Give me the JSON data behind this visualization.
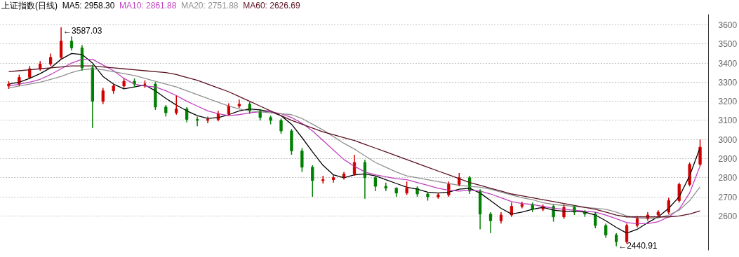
{
  "chart_data": {
    "type": "candlestick",
    "title": "上证指数(日线)",
    "legend": "top",
    "grid": "y",
    "ylim": [
      2420,
      3655
    ],
    "yticks": [
      2600,
      2700,
      2800,
      2900,
      3000,
      3100,
      3200,
      3300,
      3400,
      3500,
      3600
    ],
    "tick_labels": "y",
    "categories": [
      null,
      null,
      null,
      null,
      null,
      null,
      null,
      null,
      null,
      null,
      null,
      null,
      null,
      null,
      null,
      null,
      null,
      null,
      null,
      null,
      null,
      null,
      null,
      null,
      null,
      null,
      null,
      null,
      null,
      null,
      null,
      null,
      null,
      null,
      null,
      null,
      null,
      null,
      null,
      null,
      null,
      null,
      null,
      null,
      null,
      null,
      null,
      null,
      null,
      null,
      null,
      null,
      null,
      null,
      null,
      null,
      null,
      null,
      null,
      null,
      null,
      null,
      null,
      null,
      null,
      null,
      null
    ],
    "ohlc": [
      [
        3280,
        3305,
        3265,
        3290
      ],
      [
        3290,
        3340,
        3280,
        3325
      ],
      [
        3325,
        3385,
        3315,
        3370
      ],
      [
        3370,
        3410,
        3360,
        3395
      ],
      [
        3395,
        3450,
        3385,
        3430
      ],
      [
        3430,
        3587.03,
        3420,
        3515
      ],
      [
        3515,
        3540,
        3465,
        3480
      ],
      [
        3480,
        3495,
        3360,
        3375
      ],
      [
        3375,
        3390,
        3060,
        3200
      ],
      [
        3200,
        3270,
        3185,
        3255
      ],
      [
        3255,
        3295,
        3240,
        3280
      ],
      [
        3280,
        3320,
        3270,
        3305
      ],
      [
        3305,
        3320,
        3275,
        3290
      ],
      [
        3290,
        3310,
        3270,
        3290
      ],
      [
        3290,
        3300,
        3155,
        3170
      ],
      [
        3170,
        3180,
        3120,
        3140
      ],
      [
        3140,
        3230,
        3130,
        3160
      ],
      [
        3160,
        3170,
        3090,
        3105
      ],
      [
        3105,
        3120,
        3070,
        3100
      ],
      [
        3100,
        3120,
        3085,
        3105
      ],
      [
        3105,
        3150,
        3095,
        3135
      ],
      [
        3135,
        3190,
        3125,
        3175
      ],
      [
        3175,
        3210,
        3165,
        3185
      ],
      [
        3185,
        3195,
        3135,
        3150
      ],
      [
        3150,
        3160,
        3100,
        3115
      ],
      [
        3115,
        3125,
        3080,
        3100
      ],
      [
        3100,
        3110,
        3030,
        3045
      ],
      [
        3045,
        3055,
        2920,
        2940
      ],
      [
        2940,
        2955,
        2830,
        2855
      ],
      [
        2855,
        2865,
        2700,
        2785
      ],
      [
        2785,
        2810,
        2770,
        2790
      ],
      [
        2790,
        2815,
        2775,
        2800
      ],
      [
        2800,
        2830,
        2790,
        2820
      ],
      [
        2820,
        2920,
        2810,
        2880
      ],
      [
        2880,
        2895,
        2690,
        2800
      ],
      [
        2800,
        2810,
        2730,
        2755
      ],
      [
        2755,
        2775,
        2730,
        2745
      ],
      [
        2745,
        2750,
        2700,
        2720
      ],
      [
        2720,
        2780,
        2710,
        2745
      ],
      [
        2745,
        2755,
        2700,
        2715
      ],
      [
        2715,
        2725,
        2680,
        2700
      ],
      [
        2700,
        2720,
        2690,
        2710
      ],
      [
        2710,
        2780,
        2700,
        2765
      ],
      [
        2765,
        2825,
        2755,
        2800
      ],
      [
        2800,
        2810,
        2715,
        2730
      ],
      [
        2730,
        2740,
        2530,
        2610
      ],
      [
        2610,
        2620,
        2510,
        2575
      ],
      [
        2575,
        2620,
        2560,
        2605
      ],
      [
        2605,
        2670,
        2595,
        2650
      ],
      [
        2650,
        2675,
        2640,
        2660
      ],
      [
        2660,
        2670,
        2620,
        2635
      ],
      [
        2635,
        2660,
        2625,
        2650
      ],
      [
        2650,
        2660,
        2570,
        2595
      ],
      [
        2595,
        2660,
        2585,
        2645
      ],
      [
        2645,
        2655,
        2605,
        2620
      ],
      [
        2620,
        2630,
        2595,
        2610
      ],
      [
        2610,
        2620,
        2535,
        2550
      ],
      [
        2550,
        2560,
        2485,
        2500
      ],
      [
        2500,
        2510,
        2440.91,
        2465
      ],
      [
        2465,
        2560,
        2455,
        2550
      ],
      [
        2550,
        2600,
        2540,
        2585
      ],
      [
        2585,
        2620,
        2575,
        2605
      ],
      [
        2605,
        2630,
        2595,
        2620
      ],
      [
        2620,
        2695,
        2610,
        2680
      ],
      [
        2680,
        2775,
        2670,
        2765
      ],
      [
        2765,
        2880,
        2755,
        2870
      ],
      [
        2870,
        3000,
        2860,
        2960
      ]
    ],
    "series": [
      {
        "name": "MA5: 2958.30",
        "type": "line",
        "color": "#000000",
        "values": [
          3290,
          3300,
          3320,
          3345,
          3375,
          3420,
          3450,
          3445,
          3400,
          3330,
          3290,
          3265,
          3275,
          3285,
          3255,
          3215,
          3180,
          3150,
          3125,
          3110,
          3115,
          3130,
          3150,
          3160,
          3155,
          3145,
          3125,
          3080,
          3010,
          2935,
          2865,
          2815,
          2800,
          2815,
          2820,
          2810,
          2790,
          2770,
          2750,
          2740,
          2725,
          2720,
          2725,
          2740,
          2745,
          2720,
          2680,
          2640,
          2610,
          2620,
          2635,
          2645,
          2630,
          2625,
          2625,
          2620,
          2605,
          2575,
          2540,
          2510,
          2530,
          2565,
          2595,
          2640,
          2700,
          2810,
          2958
        ]
      },
      {
        "name": "MA10: 2861.88",
        "type": "line",
        "color": "#c040c0",
        "values": [
          3280,
          3290,
          3300,
          3315,
          3340,
          3370,
          3400,
          3420,
          3420,
          3390,
          3360,
          3320,
          3290,
          3280,
          3275,
          3255,
          3230,
          3200,
          3175,
          3150,
          3135,
          3125,
          3130,
          3140,
          3145,
          3145,
          3135,
          3115,
          3085,
          3045,
          2995,
          2945,
          2895,
          2860,
          2830,
          2815,
          2805,
          2795,
          2790,
          2775,
          2760,
          2745,
          2735,
          2730,
          2735,
          2730,
          2715,
          2695,
          2675,
          2665,
          2660,
          2650,
          2640,
          2635,
          2630,
          2625,
          2620,
          2605,
          2585,
          2565,
          2560,
          2560,
          2570,
          2595,
          2635,
          2720,
          2862
        ]
      },
      {
        "name": "MA20: 2751.88",
        "type": "line",
        "color": "#909090",
        "values": [
          3270,
          3280,
          3290,
          3300,
          3315,
          3330,
          3350,
          3365,
          3370,
          3365,
          3355,
          3345,
          3335,
          3320,
          3305,
          3290,
          3275,
          3255,
          3235,
          3215,
          3195,
          3175,
          3160,
          3150,
          3145,
          3140,
          3135,
          3130,
          3110,
          3080,
          3050,
          3015,
          2980,
          2950,
          2915,
          2880,
          2855,
          2830,
          2810,
          2800,
          2790,
          2780,
          2770,
          2760,
          2755,
          2750,
          2740,
          2725,
          2710,
          2695,
          2685,
          2670,
          2660,
          2655,
          2650,
          2645,
          2640,
          2635,
          2620,
          2600,
          2590,
          2585,
          2590,
          2605,
          2630,
          2680,
          2752
        ]
      },
      {
        "name": "MA60: 2626.69",
        "type": "line",
        "color": "#5a1020",
        "values": [
          3355,
          3360,
          3365,
          3370,
          3375,
          3380,
          3385,
          3385,
          3385,
          3380,
          3375,
          3370,
          3365,
          3360,
          3355,
          3350,
          3340,
          3325,
          3310,
          3290,
          3270,
          3250,
          3225,
          3200,
          3175,
          3150,
          3125,
          3100,
          3080,
          3060,
          3040,
          3025,
          3010,
          2995,
          2975,
          2955,
          2935,
          2915,
          2895,
          2875,
          2855,
          2835,
          2815,
          2795,
          2775,
          2760,
          2745,
          2730,
          2715,
          2705,
          2695,
          2685,
          2675,
          2665,
          2655,
          2645,
          2635,
          2620,
          2605,
          2595,
          2595,
          2595,
          2595,
          2595,
          2600,
          2610,
          2627
        ]
      }
    ],
    "annotations": [
      "←3587.03",
      "←2440.91"
    ]
  }
}
